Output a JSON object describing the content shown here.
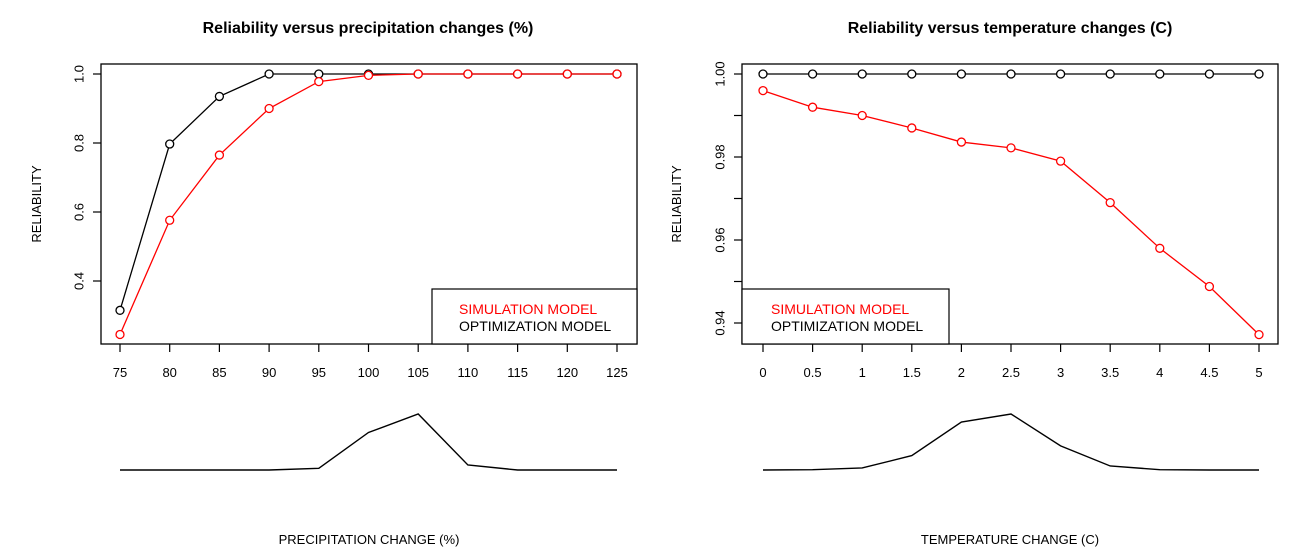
{
  "chart_data": [
    {
      "type": "line",
      "title": "Reliability versus precipitation changes (%)",
      "xlabel": "PRECIPITATION CHANGE (%)",
      "ylabel": "RELIABILITY",
      "x": [
        75,
        80,
        85,
        90,
        95,
        100,
        105,
        110,
        115,
        120,
        125
      ],
      "x_tick_labels": [
        "75",
        "80",
        "85",
        "90",
        "95",
        "100",
        "105",
        "110",
        "115",
        "120",
        "125"
      ],
      "y_ticks": [
        0.4,
        0.6,
        0.8,
        1.0
      ],
      "y_tick_labels": [
        "0.4",
        "0.6",
        "0.8",
        "1.0"
      ],
      "ylim": [
        0.22,
        1.03
      ],
      "grid": false,
      "legend_position": "bottom-right",
      "series": [
        {
          "name": "SIMULATION MODEL",
          "color": "#ff0000",
          "values": [
            0.245,
            0.576,
            0.765,
            0.9,
            0.978,
            0.996,
            1.0,
            1.0,
            1.0,
            1.0,
            1.0
          ]
        },
        {
          "name": "OPTIMIZATION MODEL",
          "color": "#000000",
          "values": [
            0.315,
            0.797,
            0.935,
            1.0,
            1.0,
            1.0,
            1.0,
            1.0,
            1.0,
            1.0,
            1.0
          ]
        }
      ],
      "distribution": {
        "description": "relative frequency of change scenarios (unlabeled)",
        "values": [
          0,
          0,
          0,
          0,
          0.03,
          0.67,
          1.0,
          0.09,
          0,
          0,
          0
        ]
      }
    },
    {
      "type": "line",
      "title": "Reliability versus temperature changes (C)",
      "xlabel": "TEMPERATURE CHANGE (C)",
      "ylabel": "RELIABILITY",
      "x": [
        0,
        0.5,
        1,
        1.5,
        2,
        2.5,
        3,
        3.5,
        4,
        4.5,
        5
      ],
      "x_tick_labels": [
        "0",
        "0.5",
        "1",
        "1.5",
        "2",
        "2.5",
        "3",
        "3.5",
        "4",
        "4.5",
        "5"
      ],
      "y_ticks": [
        0.94,
        0.95,
        0.96,
        0.97,
        0.98,
        0.99,
        1.0
      ],
      "y_tick_labels": [
        "0.94",
        "",
        "0.96",
        "",
        "0.98",
        "",
        "1.00"
      ],
      "ylim": [
        0.9347,
        1.0025
      ],
      "grid": false,
      "legend_position": "bottom-left",
      "series": [
        {
          "name": "SIMULATION MODEL",
          "color": "#ff0000",
          "values": [
            0.996,
            0.992,
            0.99,
            0.987,
            0.9836,
            0.9822,
            0.979,
            0.969,
            0.958,
            0.9488,
            0.9372
          ]
        },
        {
          "name": "OPTIMIZATION MODEL",
          "color": "#000000",
          "values": [
            1.0,
            1.0,
            1.0,
            1.0,
            1.0,
            1.0,
            1.0,
            1.0,
            1.0,
            1.0,
            1.0
          ]
        }
      ],
      "distribution": {
        "description": "relative frequency of change scenarios (unlabeled)",
        "values": [
          0,
          0.006,
          0.036,
          0.257,
          0.856,
          1.0,
          0.431,
          0.072,
          0.006,
          0,
          0
        ]
      }
    }
  ]
}
